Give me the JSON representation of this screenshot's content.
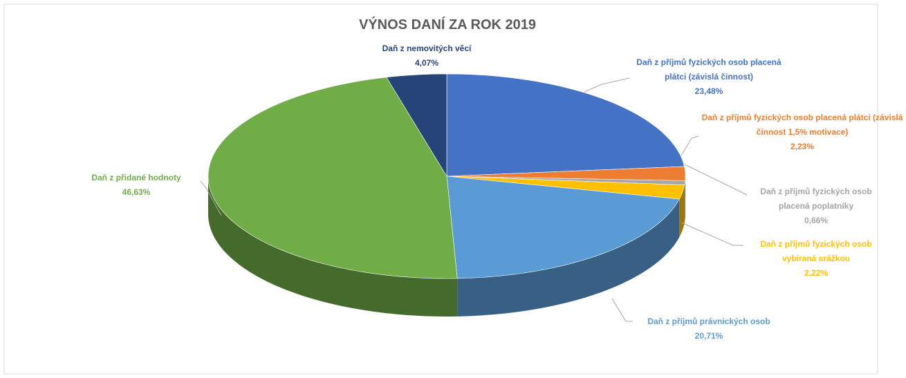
{
  "chart_data": {
    "type": "pie3d",
    "title": "VÝNOS DANÍ ZA ROK 2019",
    "categories": [
      "Daň z příjmů fyzických osob placená plátci (závislá činnost)",
      "Daň z příjmů fyzických osob placená plátci (závislá činnost 1,5% motivace)",
      "Daň z příjmů fyzických osob placená poplatníky",
      "Daň z příjmů fyzických osob vybíraná srážkou",
      "Daň z příjmů právnických osob",
      "Daň z přidané hodnoty",
      "Daň z nemovitých věcí"
    ],
    "values": [
      23.48,
      2.23,
      0.66,
      2.22,
      20.71,
      46.63,
      4.07
    ],
    "value_labels": [
      "23,48%",
      "2,23%",
      "0,66%",
      "2,22%",
      "20,71%",
      "46,63%",
      "4,07%"
    ],
    "colors": [
      "#4472c4",
      "#ed7d31",
      "#a5a5a5",
      "#ffc000",
      "#5b9bd5",
      "#70ad47",
      "#264478"
    ]
  }
}
